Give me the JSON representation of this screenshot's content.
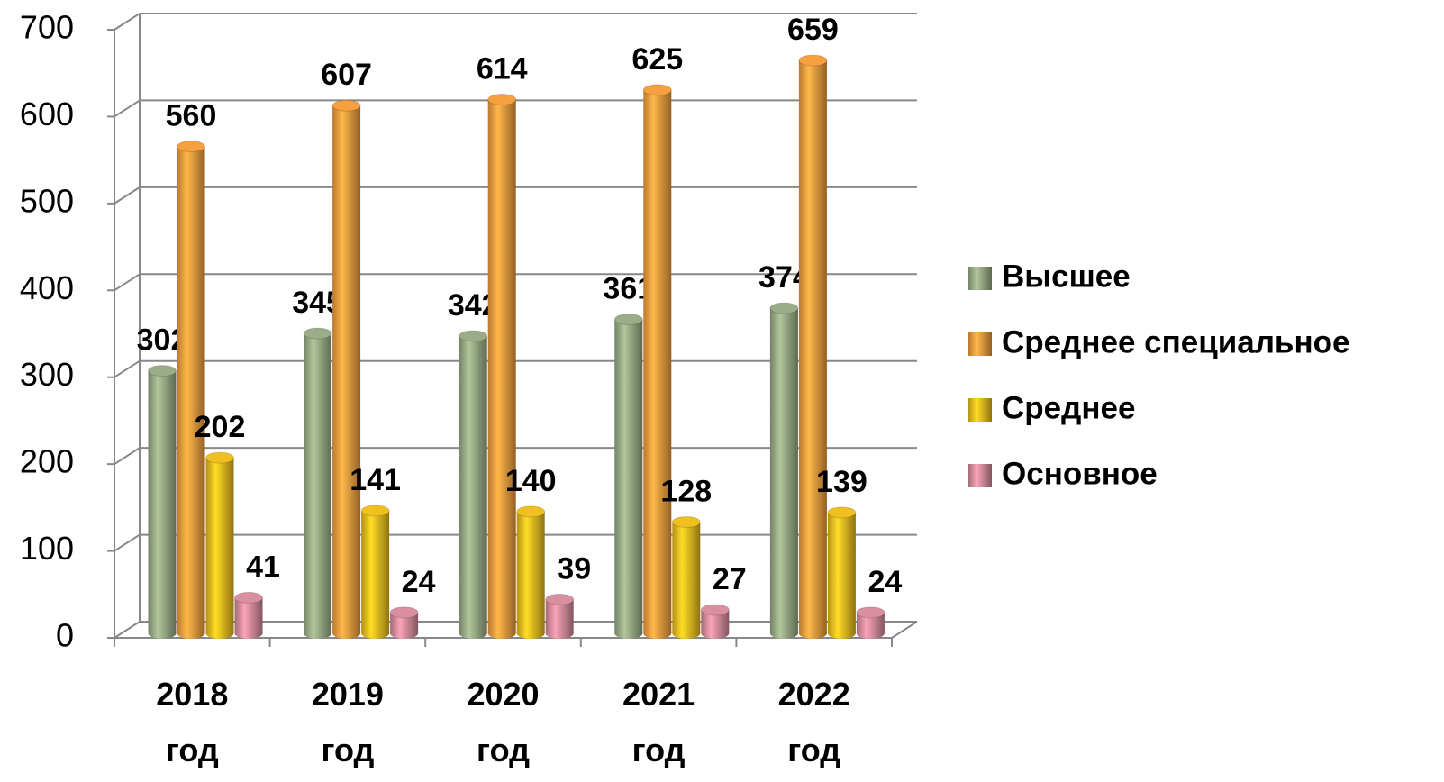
{
  "chart_data": {
    "type": "bar",
    "categories": [
      "2018 год",
      "2019 год",
      "2020 год",
      "2021 год",
      "2022 год"
    ],
    "series": [
      {
        "name": "Высшее",
        "color": "#9bad88",
        "values": [
          302,
          345,
          342,
          361,
          374
        ]
      },
      {
        "name": "Среднее специальное",
        "color": "#f7a040",
        "values": [
          560,
          607,
          614,
          625,
          659
        ]
      },
      {
        "name": "Среднее",
        "color": "#f0c020",
        "values": [
          202,
          141,
          140,
          128,
          139
        ]
      },
      {
        "name": "Основное",
        "color": "#d98fa0",
        "values": [
          41,
          24,
          39,
          27,
          24
        ]
      }
    ],
    "ylim": [
      0,
      700
    ],
    "yticks": [
      0,
      100,
      200,
      300,
      400,
      500,
      600,
      700
    ],
    "grid": true,
    "legend": "right"
  }
}
